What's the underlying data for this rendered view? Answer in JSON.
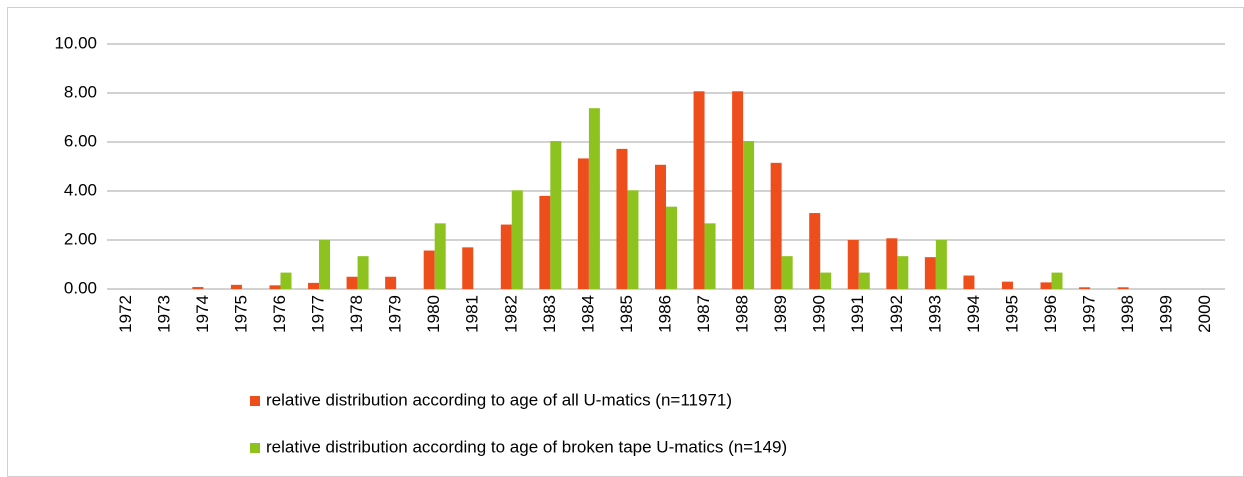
{
  "chart_data": {
    "type": "bar",
    "categories": [
      "1972",
      "1973",
      "1974",
      "1975",
      "1976",
      "1977",
      "1978",
      "1979",
      "1980",
      "1981",
      "1982",
      "1983",
      "1984",
      "1985",
      "1986",
      "1987",
      "1988",
      "1989",
      "1990",
      "1991",
      "1992",
      "1993",
      "1994",
      "1995",
      "1996",
      "1997",
      "1998",
      "1999",
      "2000"
    ],
    "series": [
      {
        "name": "relative distribution according to age of all U-matics (n=11971)",
        "color": "#ee4e1c",
        "values": [
          0,
          0,
          0.08,
          0.17,
          0.15,
          0.25,
          0.5,
          0.5,
          1.57,
          1.7,
          2.63,
          3.8,
          5.33,
          5.72,
          5.07,
          8.07,
          8.07,
          5.15,
          3.1,
          2.0,
          2.07,
          1.3,
          0.55,
          0.3,
          0.27,
          0.07,
          0.07,
          0,
          0
        ]
      },
      {
        "name": "relative distribution according to age of broken tape U-matics (n=149)",
        "color": "#8dc21f",
        "values": [
          0,
          0,
          0,
          0,
          0.67,
          2.01,
          1.34,
          0,
          2.68,
          0,
          4.03,
          6.04,
          7.38,
          4.03,
          3.36,
          2.68,
          6.04,
          1.34,
          0.67,
          0.67,
          1.34,
          2.01,
          0,
          0,
          0.67,
          0,
          0,
          0,
          0
        ]
      }
    ],
    "ylim": [
      0,
      10
    ],
    "yticks": [
      {
        "value": 0,
        "label": "0.00"
      },
      {
        "value": 2,
        "label": "2.00"
      },
      {
        "value": 4,
        "label": "4.00"
      },
      {
        "value": 6,
        "label": "6.00"
      },
      {
        "value": 8,
        "label": "8.00"
      },
      {
        "value": 10,
        "label": "10.00"
      }
    ],
    "grid": true,
    "legend": "bottom"
  }
}
